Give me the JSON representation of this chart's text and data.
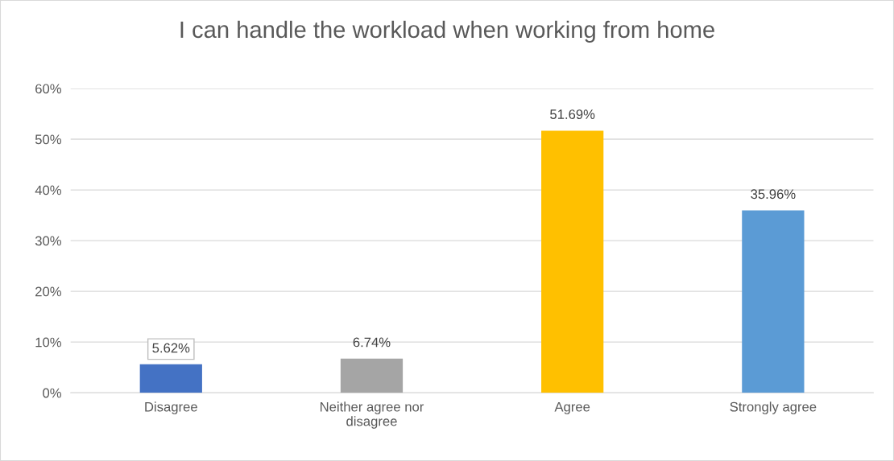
{
  "chart_data": {
    "type": "bar",
    "title": "I can handle the workload when working from home",
    "categories": [
      "Disagree",
      "Neither agree nor disagree",
      "Agree",
      "Strongly agree"
    ],
    "values": [
      5.62,
      6.74,
      51.69,
      35.96
    ],
    "colors": [
      "#4472c4",
      "#a5a5a5",
      "#ffc000",
      "#5b9bd5"
    ],
    "value_labels": [
      "5.62%",
      "6.74%",
      "51.69%",
      "35.96%"
    ],
    "ylim": [
      0,
      60
    ],
    "yticks": [
      {
        "value": 0,
        "label": "0%"
      },
      {
        "value": 10,
        "label": "10%"
      },
      {
        "value": 20,
        "label": "20%"
      },
      {
        "value": 30,
        "label": "30%"
      },
      {
        "value": 40,
        "label": "40%"
      },
      {
        "value": 50,
        "label": "50%"
      },
      {
        "value": 60,
        "label": "60%"
      }
    ],
    "grid": "y",
    "legend": false
  }
}
